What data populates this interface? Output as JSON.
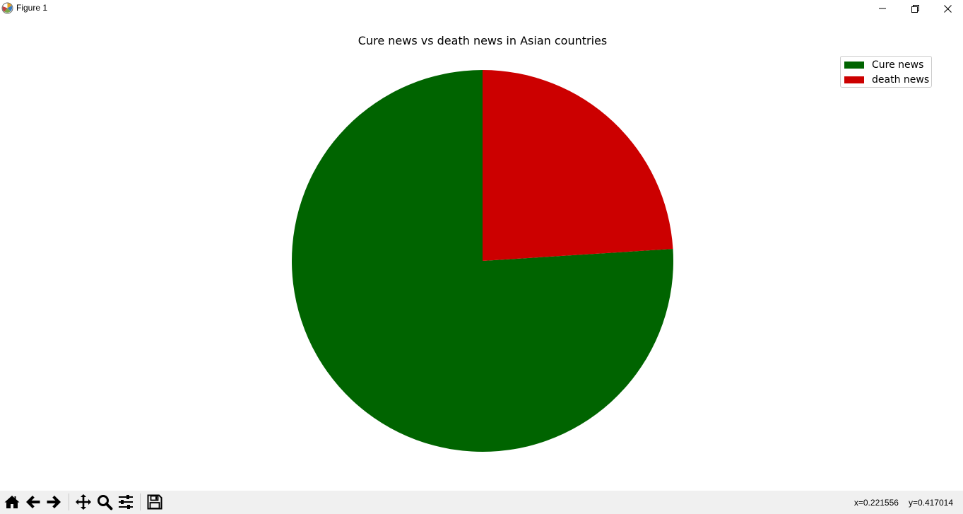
{
  "window": {
    "title": "Figure 1",
    "icons": [
      "matplotlib-logo-icon",
      "minimize-icon",
      "maximize-icon",
      "close-icon"
    ]
  },
  "chart_data": {
    "type": "pie",
    "title": "Cure news vs death news in Asian countries",
    "labels": [
      "Cure news",
      "death news"
    ],
    "values": [
      76,
      24
    ],
    "colors": [
      "#006400",
      "#cc0000"
    ],
    "startangle_deg": 90,
    "direction": "counterclockwise",
    "legend": {
      "location": "top-right",
      "entries": [
        "Cure news",
        "death news"
      ]
    }
  },
  "toolbar": {
    "buttons": [
      {
        "name": "home",
        "icon": "home-icon"
      },
      {
        "name": "back",
        "icon": "arrow-left-icon"
      },
      {
        "name": "forward",
        "icon": "arrow-right-icon"
      },
      {
        "name": "pan",
        "icon": "move-icon"
      },
      {
        "name": "zoom",
        "icon": "zoom-icon"
      },
      {
        "name": "configure-subplots",
        "icon": "sliders-icon"
      },
      {
        "name": "save",
        "icon": "save-icon"
      }
    ],
    "coords": {
      "x": "x=0.221556",
      "y": "y=0.417014"
    }
  }
}
